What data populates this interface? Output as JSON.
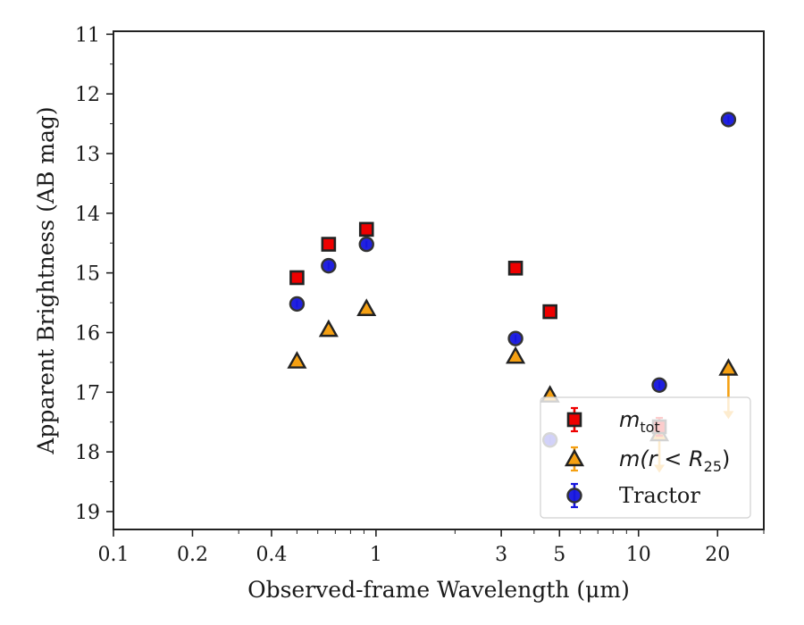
{
  "chart_data": {
    "type": "scatter",
    "title": "",
    "xlabel": "Observed-frame Wavelength (μm)",
    "ylabel": "Apparent Brightness (AB mag)",
    "xscale": "log",
    "xlim": [
      0.1,
      30
    ],
    "ylim": [
      19.3,
      10.95
    ],
    "y_inverted": true,
    "xticks": [
      0.1,
      0.2,
      0.4,
      1,
      3,
      5,
      10,
      20
    ],
    "xtick_labels": [
      "0.1",
      "0.2",
      "0.4",
      "1",
      "3",
      "5",
      "10",
      "20"
    ],
    "yticks": [
      11,
      12,
      13,
      14,
      15,
      16,
      17,
      18,
      19
    ],
    "ytick_labels": [
      "11",
      "12",
      "13",
      "14",
      "15",
      "16",
      "17",
      "18",
      "19"
    ],
    "grid": false,
    "legend_position": "lower-right",
    "series": [
      {
        "name": "m_tot",
        "legend_main": "m",
        "legend_sub": "tot",
        "marker": "square",
        "color": "#ee0000",
        "edge_color": "#222222",
        "x": [
          0.5,
          0.66,
          0.92,
          3.4,
          4.6,
          12.0
        ],
        "y": [
          15.08,
          14.52,
          14.27,
          14.92,
          15.65,
          17.58
        ],
        "yerr": [
          0.04,
          0.04,
          0.04,
          0.04,
          0.04,
          0.15
        ]
      },
      {
        "name": "m(r < R25)",
        "legend_text": "m(r < R",
        "legend_sub": "25",
        "legend_close": ")",
        "marker": "triangle",
        "color": "#f5a012",
        "edge_color": "#222222",
        "x": [
          0.5,
          0.66,
          0.92,
          3.4,
          4.6,
          12.0,
          22.0
        ],
        "y": [
          16.48,
          15.95,
          15.6,
          16.4,
          17.05,
          17.7,
          16.6
        ],
        "upper_limit": [
          false,
          false,
          false,
          false,
          false,
          true,
          true
        ],
        "limit_to": [
          null,
          null,
          null,
          null,
          null,
          18.35,
          17.45
        ]
      },
      {
        "name": "Tractor",
        "marker": "circle",
        "color": "#1515dd",
        "edge_color": "#333333",
        "x": [
          0.5,
          0.66,
          0.92,
          3.4,
          4.6,
          12.0,
          22.0
        ],
        "y": [
          15.52,
          14.88,
          14.52,
          16.1,
          17.8,
          16.88,
          12.43
        ],
        "yerr": [
          0.05,
          0.05,
          0.05,
          0.05,
          0.05,
          0.05,
          0.05
        ]
      }
    ]
  }
}
